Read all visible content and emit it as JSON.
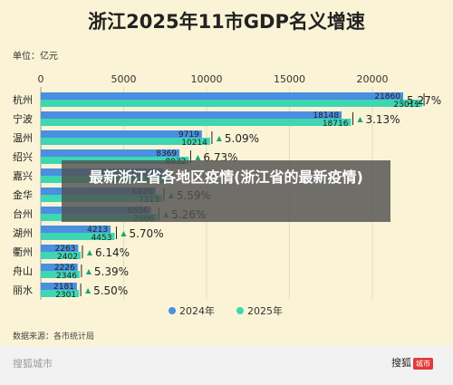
{
  "title": "浙江2025年11市GDP名义增速",
  "unit": "单位：亿元",
  "source": "数据来源：各市统计局",
  "watermark_left": "搜狐城市",
  "watermark_right": "搜狐",
  "watermark_badge": "城市",
  "overlay_text": "最新浙江省各地区疫情(浙江省的最新疫情)",
  "colors": {
    "bg": "#fbf3d6",
    "series_2024": "#4a8fe0",
    "series_2025": "#3fd6b2",
    "grid": "#e6dcc0",
    "overlay": "#505050"
  },
  "chart_data": {
    "type": "bar",
    "orientation": "horizontal",
    "xlim": [
      0,
      23500
    ],
    "x_ticks": [
      0,
      5000,
      10000,
      15000,
      20000
    ],
    "x_tick_labels": [
      "0",
      "5000",
      "10000",
      "15000",
      "20000"
    ],
    "categories": [
      "杭州",
      "宁波",
      "温州",
      "绍兴",
      "嘉兴",
      "金华",
      "台州",
      "湖州",
      "衢州",
      "舟山",
      "丽水"
    ],
    "series": [
      {
        "name": "2024年",
        "values": [
          21860,
          18148,
          9719,
          8369,
          7400,
          6926,
          6656,
          4213,
          2263,
          2226,
          2181
        ]
      },
      {
        "name": "2025年",
        "values": [
          23011,
          18716,
          10214,
          8932,
          7800,
          7313,
          7006,
          4453,
          2402,
          2346,
          2301
        ]
      }
    ],
    "data_labels_2024": [
      "21860",
      "18148",
      "9719",
      "8369",
      "",
      "6926",
      "6656",
      "4213",
      "2263",
      "2226",
      "2181"
    ],
    "data_labels_2025": [
      "23011",
      "18716",
      "10214",
      "8932",
      "",
      "7313",
      "7006",
      "4453",
      "2402",
      "2346",
      "2301"
    ],
    "growth_labels": [
      "5.27%",
      "3.13%",
      "5.09%",
      "6.73%",
      "",
      "5.59%",
      "5.26%",
      "5.70%",
      "6.14%",
      "5.39%",
      "5.50%"
    ],
    "legend": [
      "2024年",
      "2025年"
    ],
    "legend_position": "bottom",
    "grid": true
  }
}
